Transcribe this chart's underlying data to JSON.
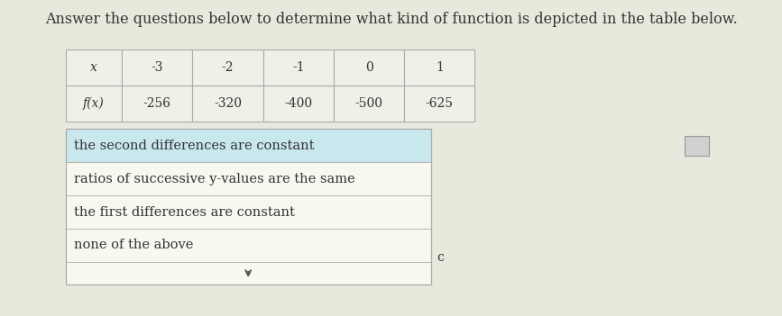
{
  "title": "Answer the questions below to determine what kind of function is depicted in the table below.",
  "title_fontsize": 11.5,
  "table_x_headers": [
    "x",
    "-3",
    "-2",
    "-1",
    "0",
    "1"
  ],
  "table_fx_headers": [
    "f(x)",
    "-256",
    "-320",
    "-400",
    "-500",
    "-625"
  ],
  "options": [
    "the second differences are constant",
    "ratios of successive y-values are the same",
    "the first differences are constant",
    "none of the above"
  ],
  "bg_color": "#e8e8dc",
  "table_bg": "#f0f0e8",
  "table_border": "#aaaaaa",
  "options_highlight_bg": "#c8e8ee",
  "options_white_bg": "#f8f8f0",
  "options_border": "#aaaaaa",
  "text_color": "#333333",
  "small_button_bg": "#d0d0d0",
  "small_button_border": "#999999"
}
